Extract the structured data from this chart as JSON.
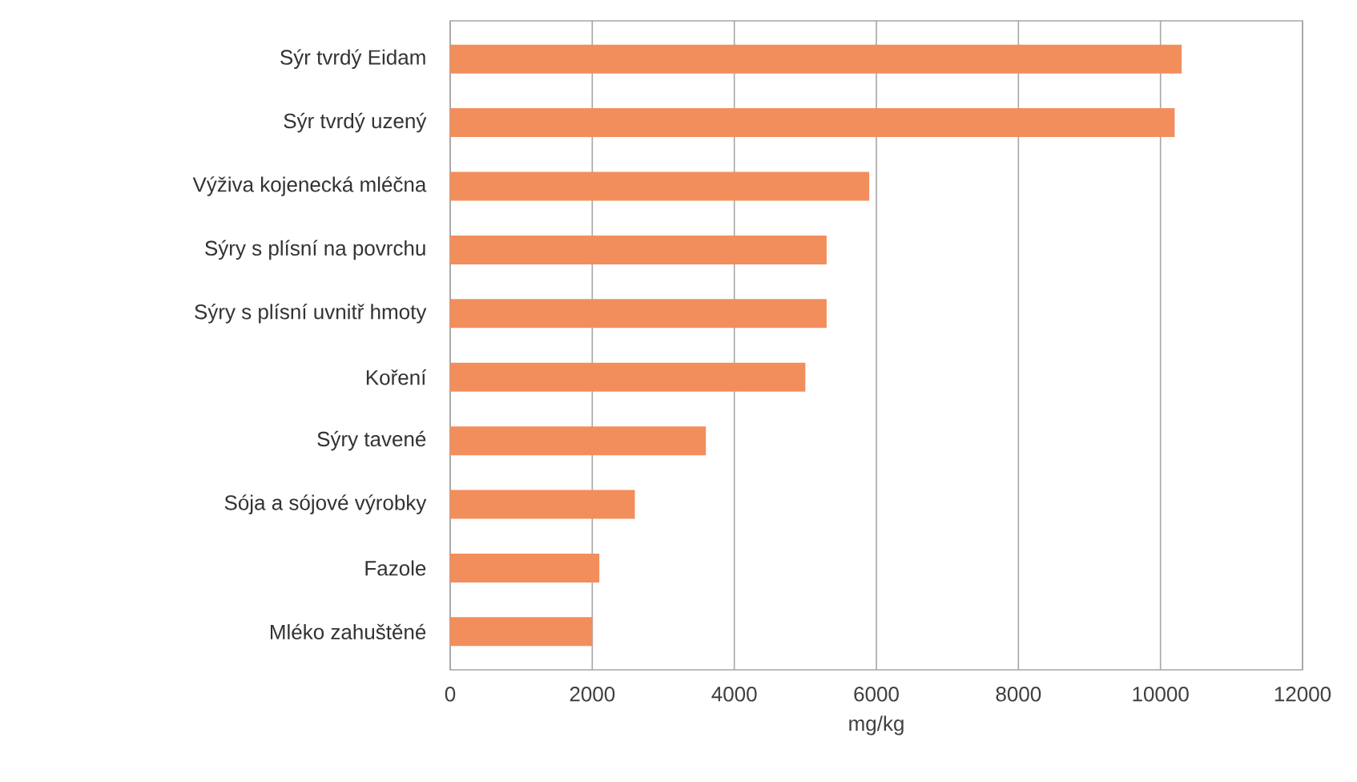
{
  "chart_data": {
    "type": "bar",
    "orientation": "horizontal",
    "xlabel": "mg/kg",
    "categories": [
      "Sýr tvrdý Eidam",
      "Sýr tvrdý uzený",
      "Výživa kojenecká mléčna",
      "Sýry s plísní na povrchu",
      "Sýry s plísní uvnitř hmoty",
      "Koření",
      "Sýry tavené",
      "Sója a sójové výrobky",
      "Fazole",
      "Mléko zahuštěné"
    ],
    "values": [
      10300,
      10200,
      5900,
      5300,
      5300,
      5000,
      3600,
      2600,
      2100,
      2000
    ],
    "color": "#f28e5c",
    "xlim": [
      0,
      12000
    ],
    "xticks": [
      0,
      2000,
      4000,
      6000,
      8000,
      10000,
      12000
    ],
    "grid": "x"
  }
}
